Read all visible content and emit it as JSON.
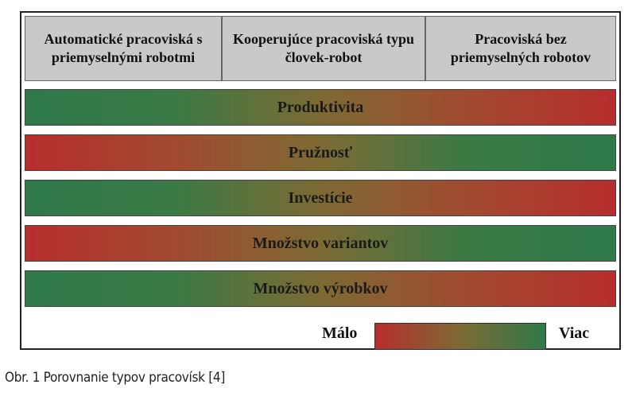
{
  "header": {
    "columns": [
      "Automatické pracoviská s priemyselnými robotmi",
      "Kooperujúce pracoviská typu človek-robot",
      "Pracoviská bez priemyselných robotov"
    ]
  },
  "rows": [
    "Produktivita",
    "Pružnosť",
    "Investície",
    "Množstvo variantov",
    "Množstvo výrobkov"
  ],
  "legend": {
    "low": "Málo",
    "high": "Viac"
  },
  "caption": "Obr. 1 Porovnanie typov pracovísk [4]"
}
